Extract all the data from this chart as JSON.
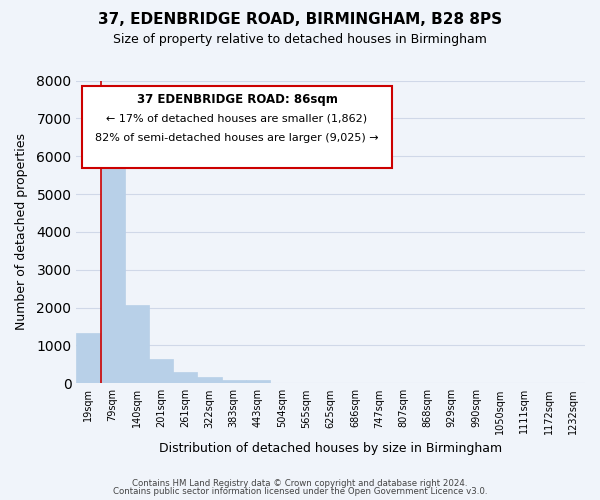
{
  "title": "37, EDENBRIDGE ROAD, BIRMINGHAM, B28 8PS",
  "subtitle": "Size of property relative to detached houses in Birmingham",
  "xlabel": "Distribution of detached houses by size in Birmingham",
  "ylabel": "Number of detached properties",
  "bar_color": "#b8d0e8",
  "bar_edge_color": "#b8d0e8",
  "marker_line_color": "#cc0000",
  "grid_color": "#d0d8e8",
  "background_color": "#f0f4fa",
  "bin_labels": [
    "19sqm",
    "79sqm",
    "140sqm",
    "201sqm",
    "261sqm",
    "322sqm",
    "383sqm",
    "443sqm",
    "504sqm",
    "565sqm",
    "625sqm",
    "686sqm",
    "747sqm",
    "807sqm",
    "868sqm",
    "929sqm",
    "990sqm",
    "1050sqm",
    "1111sqm",
    "1172sqm",
    "1232sqm"
  ],
  "bar_heights": [
    1320,
    6600,
    2080,
    640,
    300,
    155,
    80,
    95,
    0,
    0,
    0,
    0,
    0,
    0,
    0,
    0,
    0,
    0,
    0,
    0,
    0
  ],
  "ylim": [
    0,
    8000
  ],
  "yticks": [
    0,
    1000,
    2000,
    3000,
    4000,
    5000,
    6000,
    7000,
    8000
  ],
  "annotation_title": "37 EDENBRIDGE ROAD: 86sqm",
  "annotation_line1": "← 17% of detached houses are smaller (1,862)",
  "annotation_line2": "82% of semi-detached houses are larger (9,025) →",
  "footer_line1": "Contains HM Land Registry data © Crown copyright and database right 2024.",
  "footer_line2": "Contains public sector information licensed under the Open Government Licence v3.0."
}
